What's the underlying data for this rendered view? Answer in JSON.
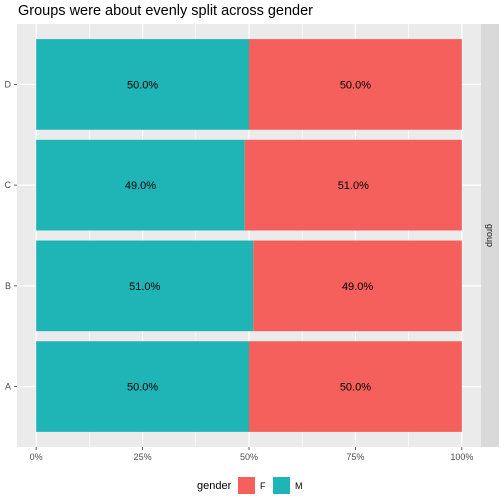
{
  "chart_data": {
    "type": "bar",
    "orientation": "horizontal",
    "stacked": true,
    "title": "Groups were about evenly split across gender",
    "categories": [
      "A",
      "B",
      "C",
      "D"
    ],
    "series": [
      {
        "name": "M",
        "color": "#1fb4b6",
        "values": [
          0.5,
          0.51,
          0.49,
          0.5
        ],
        "labels": [
          "50.0%",
          "51.0%",
          "49.0%",
          "50.0%"
        ]
      },
      {
        "name": "F",
        "color": "#f5605c",
        "values": [
          0.5,
          0.49,
          0.51,
          0.5
        ],
        "labels": [
          "50.0%",
          "49.0%",
          "51.0%",
          "50.0%"
        ]
      }
    ],
    "xlim": [
      0,
      1
    ],
    "x_ticks": [
      0,
      0.25,
      0.5,
      0.75,
      1
    ],
    "x_tick_labels": [
      "0%",
      "25%",
      "50%",
      "75%",
      "100%"
    ],
    "xlabel": "",
    "ylabel": "",
    "facet_strip": "group",
    "legend": {
      "title": "gender",
      "position": "bottom",
      "entries": [
        "F",
        "M"
      ]
    },
    "grid": true,
    "panel_background": "#ebebeb",
    "grid_color": "#ffffff"
  }
}
